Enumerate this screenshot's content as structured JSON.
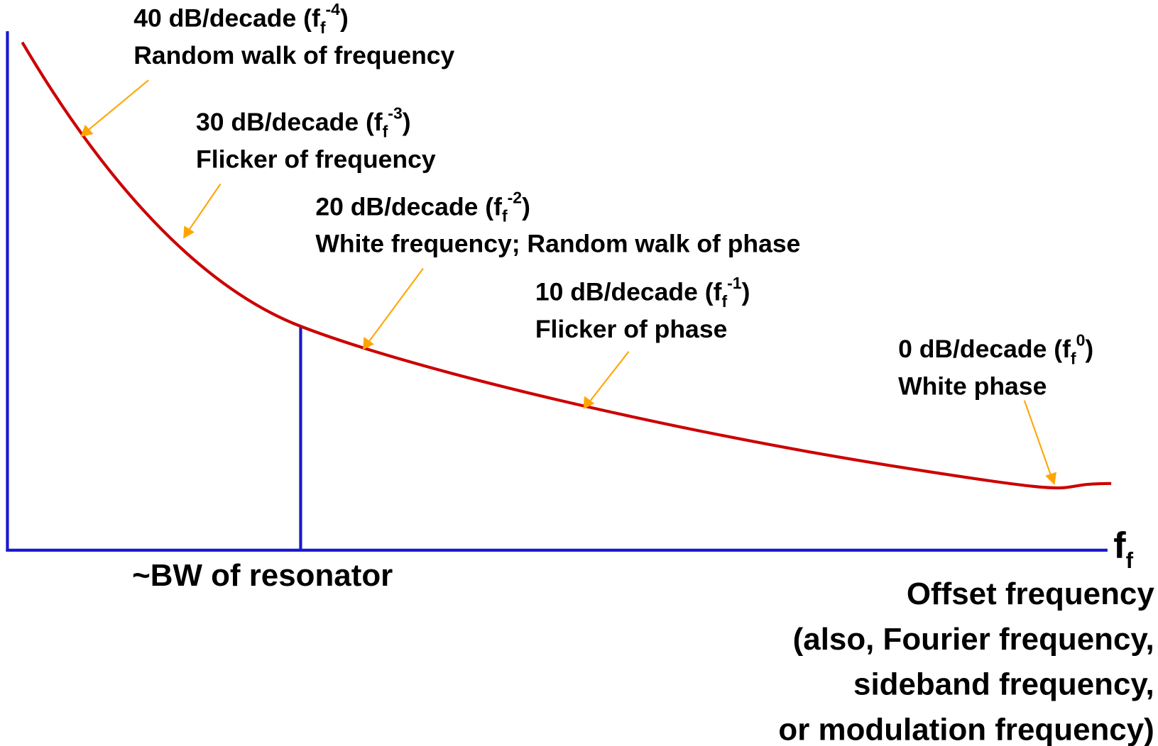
{
  "annotations": [
    {
      "prefix": "40 dB/decade (f",
      "sub": "f",
      "sup": "-4",
      "suffix": ")",
      "label": "Random walk of frequency"
    },
    {
      "prefix": "30 dB/decade (f",
      "sub": "f",
      "sup": "-3",
      "suffix": ")",
      "label": "Flicker of frequency"
    },
    {
      "prefix": "20 dB/decade (f",
      "sub": "f",
      "sup": "-2",
      "suffix": ")",
      "label": "White frequency; Random walk of phase"
    },
    {
      "prefix": "10 dB/decade (f",
      "sub": "f",
      "sup": "-1",
      "suffix": ")",
      "label": "Flicker of phase"
    },
    {
      "prefix": "0 dB/decade (f",
      "sub": "f",
      "sup": "0",
      "suffix": ")",
      "label": "White phase"
    }
  ],
  "x_axis": {
    "symbol": "f",
    "symbol_sub": "f",
    "lines": [
      "Offset frequency",
      "(also, Fourier frequency,",
      "sideband frequency,",
      "or modulation frequency)"
    ]
  },
  "marker_label": "~BW of resonator"
}
